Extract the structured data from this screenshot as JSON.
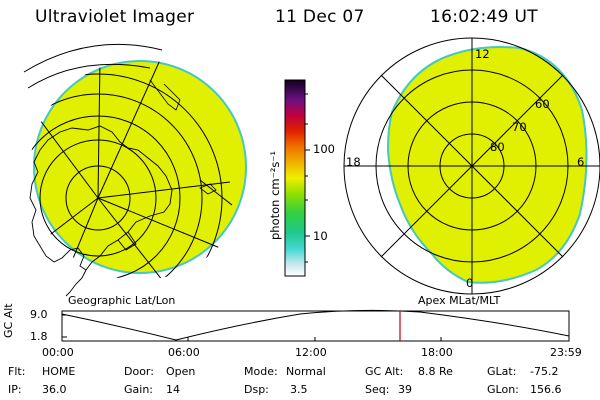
{
  "header": {
    "title": "Ultraviolet Imager",
    "date": "11 Dec 07",
    "time": "16:02:49 UT"
  },
  "colorbar": {
    "unit_label": "photon cm⁻²s⁻¹",
    "ticks": [
      "100",
      "10"
    ],
    "scale": "log"
  },
  "geo_panel": {
    "label": "Geographic Lat/Lon"
  },
  "apex_panel": {
    "label": "Apex MLat/MLT",
    "mlt_labels": {
      "top": "12",
      "left": "18",
      "right": "6",
      "bottom": "0"
    },
    "lat_labels": [
      "60",
      "70",
      "80"
    ]
  },
  "altitude_plot": {
    "ylabel": "GC Alt",
    "yticks": [
      "9.0",
      "1.8"
    ],
    "xticks": [
      "00:00",
      "06:00",
      "12:00",
      "18:00",
      "23:59"
    ],
    "current_marker_time": "16:02:49"
  },
  "info": {
    "flt_label": "Flt:",
    "flt_value": "HOME",
    "ip_label": "IP:",
    "ip_value": "36.0",
    "door_label": "Door:",
    "door_value": "Open",
    "gain_label": "Gain:",
    "gain_value": "14",
    "mode_label": "Mode:",
    "mode_value": "Normal",
    "dsp_label": "Dsp:",
    "dsp_value": "3.5",
    "gcalt_label": "GC Alt:",
    "gcalt_value": "8.8 Re",
    "seq_label": "Seq:",
    "seq_value": "39",
    "glat_label": "GLat:",
    "glat_value": "-75.2",
    "glon_label": "GLon:",
    "glon_value": "156.6"
  },
  "colors": {
    "emission": "#e0f000",
    "emission_edge": "#44c8c0",
    "marker": "#c00000"
  }
}
